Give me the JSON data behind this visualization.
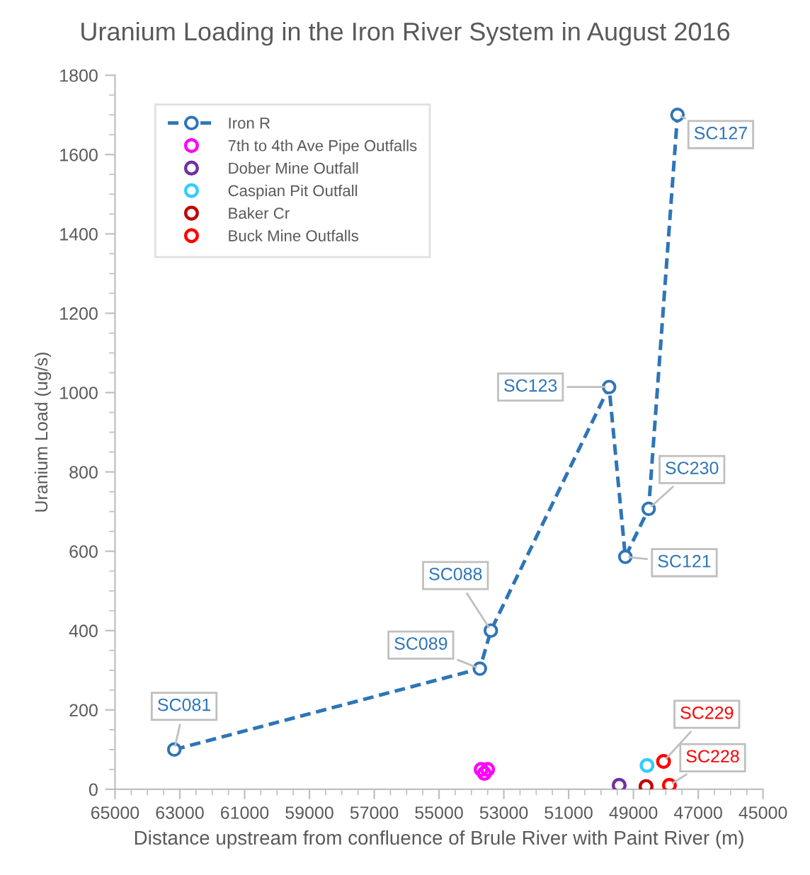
{
  "chart_data": {
    "type": "scatter",
    "title": "Uranium Loading in the Iron River System in August 2016",
    "xlabel": "Distance upstream from confluence of Brule River with Paint River (m)",
    "ylabel": "Uranium Load (ug/s)",
    "xlim": [
      65000,
      45000
    ],
    "xticks": [
      65000,
      63000,
      61000,
      59000,
      57000,
      55000,
      53000,
      51000,
      49000,
      47000,
      45000
    ],
    "ylim": [
      0,
      1800
    ],
    "yticks": [
      0,
      200,
      400,
      600,
      800,
      1000,
      1200,
      1400,
      1600,
      1800
    ],
    "grid": false,
    "legend": "top left",
    "marker": "circle",
    "series": [
      {
        "name": "Iron R",
        "type": "line",
        "line_style": "dashed",
        "color": "#2e75b6",
        "x": [
          63170,
          53740,
          53400,
          49750,
          49250,
          48530,
          47640
        ],
        "values": [
          100,
          304,
          400,
          1014,
          586,
          707,
          1700
        ]
      },
      {
        "name": "7th to 4th Ave Pipe Outfalls",
        "color": "#ff00ff",
        "x": [
          53700,
          53500,
          53600
        ],
        "values": [
          50,
          50,
          40
        ]
      },
      {
        "name": "Dober Mine Outfall",
        "color": "#7030a0",
        "x": [
          49440
        ],
        "values": [
          10
        ]
      },
      {
        "name": "Caspian Pit Outfall",
        "color": "#33ccff",
        "x": [
          48580
        ],
        "values": [
          60
        ]
      },
      {
        "name": "Baker Cr",
        "color": "#c00000",
        "x": [
          48610
        ],
        "values": [
          7
        ]
      },
      {
        "name": "Buck Mine Outfalls",
        "color": "#ff0000",
        "x": [
          48070,
          47890
        ],
        "values": [
          70,
          10
        ]
      }
    ],
    "annotations": [
      {
        "text": "SC081",
        "x": 63170,
        "y": 100
      },
      {
        "text": "SC089",
        "x": 53740,
        "y": 304
      },
      {
        "text": "SC088",
        "x": 53400,
        "y": 400
      },
      {
        "text": "SC123",
        "x": 49750,
        "y": 1014
      },
      {
        "text": "SC121",
        "x": 49250,
        "y": 586
      },
      {
        "text": "SC230",
        "x": 48530,
        "y": 707
      },
      {
        "text": "SC127",
        "x": 47640,
        "y": 1700
      },
      {
        "text": "SC229",
        "x": 48070,
        "y": 70
      },
      {
        "text": "SC228",
        "x": 47890,
        "y": 10
      }
    ]
  }
}
